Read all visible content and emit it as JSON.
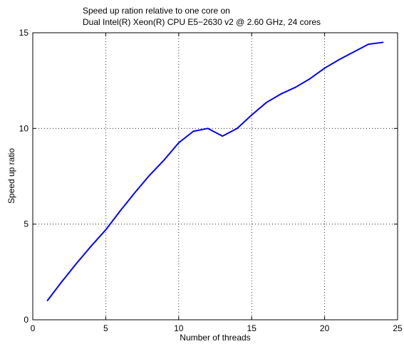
{
  "chart_data": {
    "type": "line",
    "title": [
      "Speed up ration relative to one core on",
      "Dual Intel(R) Xeon(R) CPU E5−2630 v2 @ 2.60 GHz, 24 cores"
    ],
    "xlabel": "Number of threads",
    "ylabel": "Speed up ratio",
    "xlim": [
      0,
      25
    ],
    "ylim": [
      0,
      15
    ],
    "xticks": [
      0,
      5,
      10,
      15,
      20,
      25
    ],
    "yticks": [
      0,
      5,
      10,
      15
    ],
    "grid": true,
    "series": [
      {
        "color": "#0000ff",
        "x": [
          1,
          2,
          3,
          4,
          5,
          6,
          7,
          8,
          9,
          10,
          11,
          12,
          13,
          14,
          15,
          16,
          17,
          18,
          19,
          20,
          21,
          22,
          23,
          24
        ],
        "y": [
          1.0,
          2.0,
          2.95,
          3.85,
          4.7,
          5.7,
          6.65,
          7.55,
          8.35,
          9.25,
          9.85,
          10.0,
          9.6,
          10.0,
          10.7,
          11.35,
          11.8,
          12.15,
          12.6,
          13.15,
          13.6,
          14.0,
          14.4,
          14.5
        ]
      }
    ]
  }
}
